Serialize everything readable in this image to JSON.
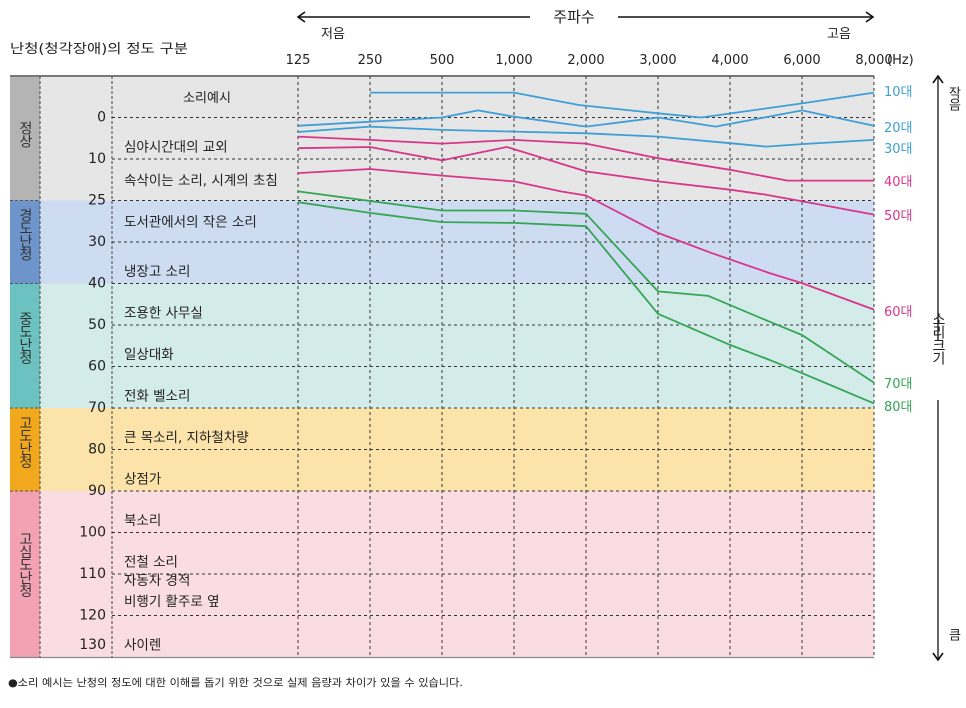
{
  "header": {
    "frequency_label": "주파수",
    "low_label": "저음",
    "high_label": "고음",
    "category_title": "난청(청각장애)의 정도 구분",
    "example_header": "소리예시",
    "loudness_label": "소리크기",
    "soft_label": "작음",
    "loud_label": "큼"
  },
  "footnote": "●소리 예시는 난청의 정도에 대한 이해를 돕기 위한 것으로 실제 음량과 차이가 있을 수 있습니다.",
  "colors": {
    "blue": "#3e9fd6",
    "magenta": "#d8368a",
    "green": "#36a556"
  },
  "bands": [
    {
      "name": "정상",
      "from": -25,
      "to": 25,
      "side_color": "#b4b4b4",
      "bg_color": "#e6e6e6"
    },
    {
      "name": "경도난청",
      "from": 25,
      "to": 40,
      "side_color": "#6d95cb",
      "bg_color": "#cedcf2"
    },
    {
      "name": "중도난청",
      "from": 40,
      "to": 70,
      "side_color": "#6cc2c0",
      "bg_color": "#d3ece9"
    },
    {
      "name": "고도난청",
      "from": 70,
      "to": 90,
      "side_color": "#f2a81c",
      "bg_color": "#fbe3a9"
    },
    {
      "name": "고심도난청",
      "from": 90,
      "to": 130,
      "side_color": "#f2a2b3",
      "bg_color": "#fadce3"
    }
  ],
  "sound_examples": [
    {
      "text": "심야시간대의 교외",
      "level": 7
    },
    {
      "text": "속삭이는 소리, 시계의 초침",
      "level": 17.5
    },
    {
      "text": "도서관에서의 작은 소리",
      "level": 27.5
    },
    {
      "text": "냉장고 소리",
      "level": 37
    },
    {
      "text": "조용한 사무실",
      "level": 47
    },
    {
      "text": "일상대화",
      "level": 57
    },
    {
      "text": "전화 벨소리",
      "level": 67
    },
    {
      "text": "큰 목소리, 지하철차량",
      "level": 77
    },
    {
      "text": "상점가",
      "level": 87
    },
    {
      "text": "북소리",
      "level": 97
    },
    {
      "text": "전철 소리",
      "level": 107
    },
    {
      "text": "자동차 경적",
      "level": 111.5
    },
    {
      "text": "비행기 활주로 옆",
      "level": 116.5
    },
    {
      "text": "사이렌",
      "level": 127
    }
  ],
  "chart_data": {
    "type": "line",
    "xlabel": "주파수",
    "x_unit": "(Hz)",
    "x_ticks": [
      125,
      250,
      500,
      1000,
      2000,
      3000,
      4000,
      6000,
      8000
    ],
    "x_tick_labels": [
      "125",
      "250",
      "500",
      "1,000",
      "2,000",
      "3,000",
      "4,000",
      "6,000",
      "8,000"
    ],
    "ylabel": "소리크기",
    "y_ticks": [
      0,
      10,
      25,
      30,
      40,
      50,
      60,
      70,
      80,
      90,
      100,
      110,
      120,
      130
    ],
    "y_tick_labels": [
      "0",
      "10",
      "25",
      "30",
      "40",
      "50",
      "60",
      "70",
      "80",
      "90",
      "100",
      "110",
      "120",
      "130"
    ],
    "y_inverted": true,
    "grid": true,
    "legend": "right (labels at line ends)",
    "series": [
      {
        "name": "10대",
        "color": "#3e9fd6",
        "points": [
          [
            250,
            -6
          ],
          [
            500,
            -6
          ],
          [
            1000,
            -6
          ],
          [
            1900,
            -3
          ],
          [
            3000,
            -1
          ],
          [
            3600,
            0
          ],
          [
            6000,
            -3.4
          ],
          [
            8000,
            -6
          ]
        ]
      },
      {
        "name": "20대",
        "color": "#3e9fd6",
        "points": [
          [
            125,
            2
          ],
          [
            250,
            1
          ],
          [
            500,
            0
          ],
          [
            750,
            -1.7
          ],
          [
            1000,
            -0.2
          ],
          [
            2000,
            2.2
          ],
          [
            3000,
            0
          ],
          [
            3800,
            2.2
          ],
          [
            6000,
            -1.7
          ],
          [
            8000,
            2
          ]
        ]
      },
      {
        "name": "30대",
        "color": "#3e9fd6",
        "points": [
          [
            125,
            3.5
          ],
          [
            250,
            2.2
          ],
          [
            500,
            3
          ],
          [
            1000,
            3.4
          ],
          [
            2000,
            3.8
          ],
          [
            3000,
            4.6
          ],
          [
            4000,
            6.2
          ],
          [
            5000,
            7
          ],
          [
            6000,
            6.4
          ],
          [
            8000,
            5.4
          ]
        ]
      },
      {
        "name": "40대",
        "color": "#d8368a",
        "points": [
          [
            125,
            4.6
          ],
          [
            250,
            5.4
          ],
          [
            500,
            6.3
          ],
          [
            1000,
            5.4
          ],
          [
            2000,
            6.3
          ],
          [
            3000,
            9.8
          ],
          [
            4000,
            13.9
          ],
          [
            5600,
            17.8
          ],
          [
            8000,
            17.8
          ]
        ]
      },
      {
        "name": "50대",
        "color": "#d8368a",
        "points": [
          [
            125,
            7.4
          ],
          [
            250,
            7.1
          ],
          [
            500,
            10.5
          ],
          [
            950,
            7.1
          ],
          [
            2000,
            14.5
          ],
          [
            3000,
            18.1
          ],
          [
            4000,
            21.1
          ],
          [
            5000,
            22.9
          ],
          [
            6000,
            25.1
          ],
          [
            8000,
            26.7
          ]
        ]
      },
      {
        "name": "60대",
        "color": "#d8368a",
        "points": [
          [
            125,
            15.1
          ],
          [
            250,
            13.6
          ],
          [
            500,
            16
          ],
          [
            1000,
            18.1
          ],
          [
            1650,
            21.7
          ],
          [
            2000,
            23.2
          ],
          [
            3000,
            28.9
          ],
          [
            3750,
            32.7
          ],
          [
            5100,
            37.5
          ],
          [
            6000,
            39.9
          ],
          [
            8000,
            46.3
          ]
        ]
      },
      {
        "name": "70대",
        "color": "#36a556",
        "points": [
          [
            125,
            21.7
          ],
          [
            500,
            26.2
          ],
          [
            1000,
            26.2
          ],
          [
            2000,
            26.6
          ],
          [
            3000,
            41.9
          ],
          [
            3700,
            43
          ],
          [
            5100,
            49.2
          ],
          [
            6000,
            52.4
          ],
          [
            8000,
            63.9
          ]
        ]
      },
      {
        "name": "80대",
        "color": "#36a556",
        "points": [
          [
            125,
            25.2
          ],
          [
            250,
            26.5
          ],
          [
            500,
            27.6
          ],
          [
            1000,
            27.7
          ],
          [
            2000,
            28.1
          ],
          [
            3000,
            47.3
          ],
          [
            4000,
            54.8
          ],
          [
            5100,
            58.4
          ],
          [
            6000,
            61.6
          ],
          [
            8000,
            68.9
          ]
        ]
      }
    ]
  }
}
